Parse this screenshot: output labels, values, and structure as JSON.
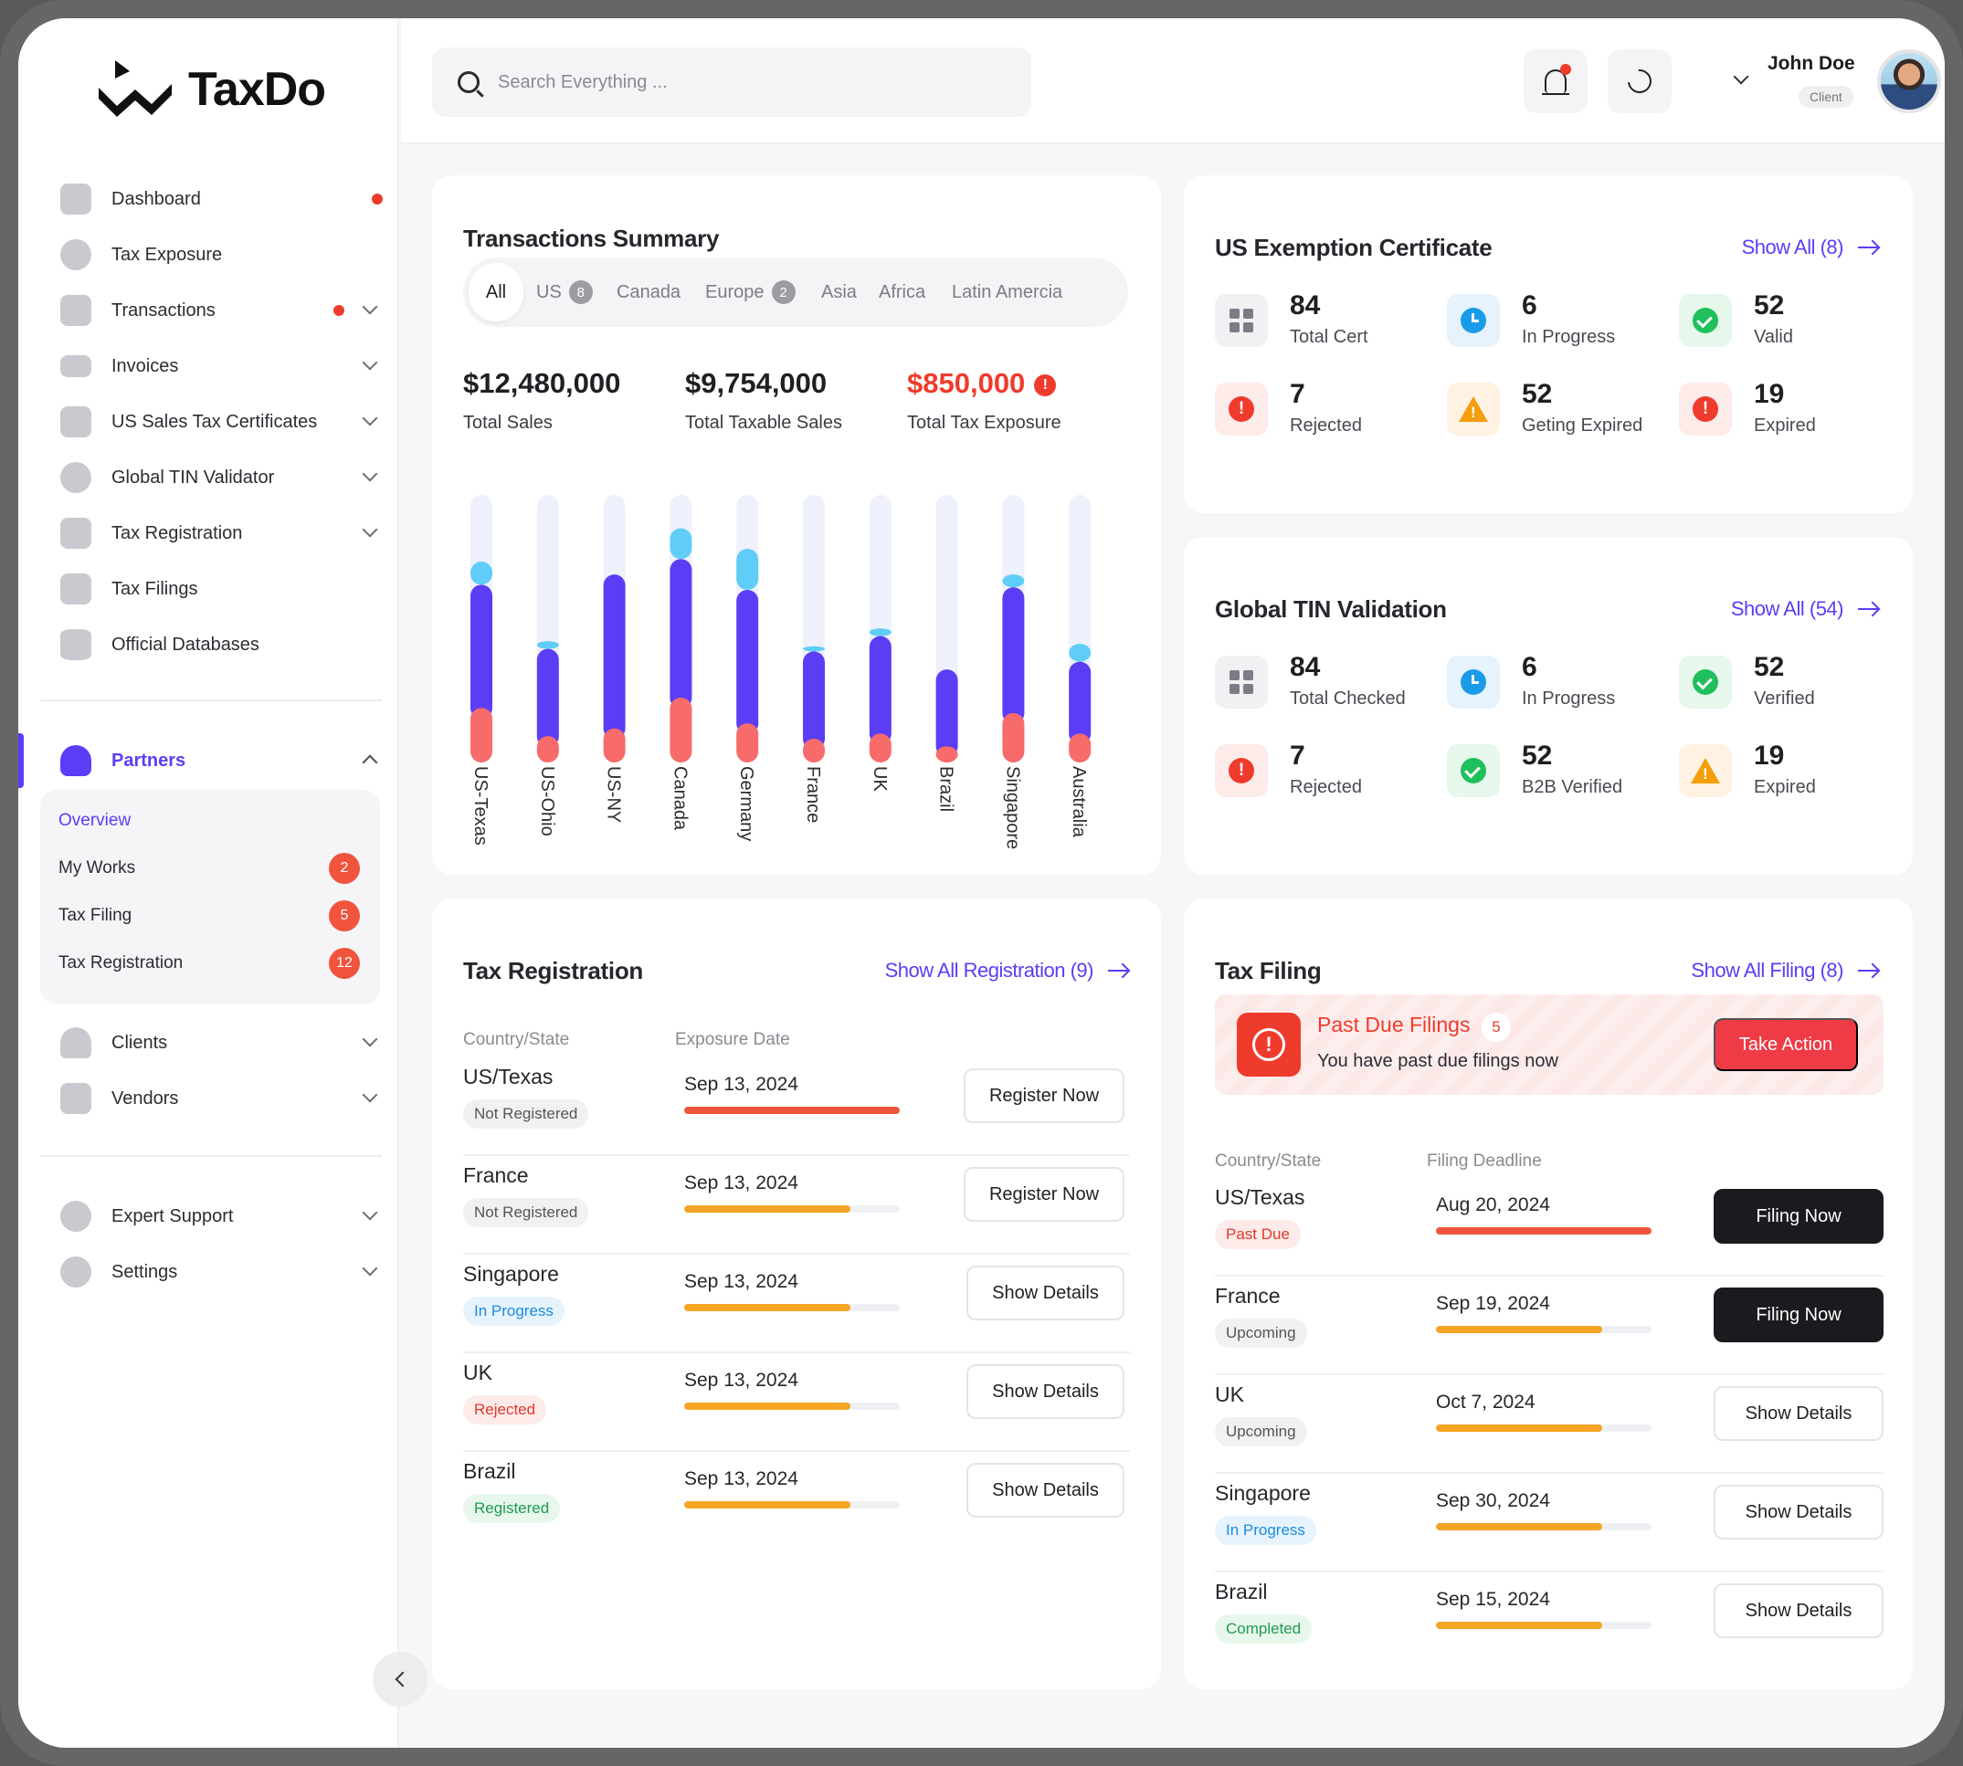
{
  "app": {
    "name": "TaxDo",
    "accent": "#5b3df5"
  },
  "search": {
    "placeholder": "Search Everything ..."
  },
  "user": {
    "name": "John Doe",
    "role": "Client"
  },
  "sidebar": {
    "items": [
      {
        "label": "Dashboard",
        "icon": "chart-icon"
      },
      {
        "label": "Tax Exposure",
        "icon": "eye-icon"
      },
      {
        "label": "Transactions",
        "icon": "receipt-icon"
      },
      {
        "label": "Invoices",
        "icon": "card-icon"
      },
      {
        "label": "US Sales Tax Certificates",
        "icon": "certificate-icon"
      },
      {
        "label": "Global TIN Validator",
        "icon": "badge-check-icon"
      },
      {
        "label": "Tax Registration",
        "icon": "pen-icon"
      },
      {
        "label": "Tax Filings",
        "icon": "filing-icon"
      },
      {
        "label": "Official Databases",
        "icon": "database-icon"
      }
    ],
    "partners": {
      "label": "Partners",
      "sub": [
        {
          "label": "Overview"
        },
        {
          "label": "My Works",
          "badge": "2"
        },
        {
          "label": "Tax Filing",
          "badge": "5"
        },
        {
          "label": "Tax Registration",
          "badge": "12"
        }
      ]
    },
    "more": [
      {
        "label": "Clients",
        "icon": "users-icon"
      },
      {
        "label": "Vendors",
        "icon": "store-icon"
      }
    ],
    "bottom": [
      {
        "label": "Expert Support",
        "icon": "headset-icon"
      },
      {
        "label": "Settings",
        "icon": "gear-icon"
      }
    ]
  },
  "transactions": {
    "title": "Transactions Summary",
    "tabs": [
      {
        "label": "All"
      },
      {
        "label": "US",
        "badge": "8"
      },
      {
        "label": "Canada"
      },
      {
        "label": "Europe",
        "badge": "2"
      },
      {
        "label": "Asia"
      },
      {
        "label": "Africa"
      },
      {
        "label": "Latin Amercia"
      }
    ],
    "stats": [
      {
        "value": "$12,480,000",
        "label": "Total Sales"
      },
      {
        "value": "$9,754,000",
        "label": "Total Taxable Sales"
      },
      {
        "value": "$850,000",
        "label": "Total Tax Exposure"
      }
    ]
  },
  "chart_data": {
    "type": "bar",
    "stacked": true,
    "categories": [
      "US-Texas",
      "US-Ohio",
      "US-NY",
      "Canada",
      "Germany",
      "France",
      "UK",
      "Brazil",
      "Singapore",
      "Australia"
    ],
    "series": [
      {
        "color": "#f76b6b",
        "values": [
          0.17,
          0.06,
          0.09,
          0.21,
          0.11,
          0.05,
          0.07,
          0.02,
          0.15,
          0.07
        ]
      },
      {
        "color": "#5b3df5",
        "values": [
          0.48,
          0.34,
          0.6,
          0.54,
          0.52,
          0.34,
          0.38,
          0.3,
          0.49,
          0.28
        ]
      },
      {
        "color": "#5fcdf7",
        "values": [
          0.09,
          0.03,
          0,
          0.12,
          0.16,
          0.02,
          0.03,
          0,
          0.05,
          0.07
        ]
      }
    ],
    "max": 1,
    "track_color": "#eef1fb"
  },
  "exemption": {
    "title": "US Exemption Certificate",
    "show_all": "Show All (8)",
    "stats": [
      {
        "value": "84",
        "label": "Total Cert",
        "icon": "grid-icon",
        "tone": "grid"
      },
      {
        "value": "6",
        "label": "In Progress",
        "icon": "clock-icon",
        "tone": "blue"
      },
      {
        "value": "52",
        "label": "Valid",
        "icon": "check-circle-icon",
        "tone": "green"
      },
      {
        "value": "7",
        "label": "Rejected",
        "icon": "alert-circle-icon",
        "tone": "red"
      },
      {
        "value": "52",
        "label": "Geting Expired",
        "icon": "warning-icon",
        "tone": "amber"
      },
      {
        "value": "19",
        "label": "Expired",
        "icon": "alert-circle-icon",
        "tone": "red"
      }
    ]
  },
  "tin": {
    "title": "Global TIN Validation",
    "show_all": "Show All (54)",
    "stats": [
      {
        "value": "84",
        "label": "Total Checked",
        "icon": "grid-icon",
        "tone": "grid"
      },
      {
        "value": "6",
        "label": "In Progress",
        "icon": "clock-icon",
        "tone": "blue"
      },
      {
        "value": "52",
        "label": "Verified",
        "icon": "check-circle-icon",
        "tone": "green"
      },
      {
        "value": "7",
        "label": "Rejected",
        "icon": "alert-circle-icon",
        "tone": "red"
      },
      {
        "value": "52",
        "label": "B2B Verified",
        "icon": "check-circle-icon",
        "tone": "green"
      },
      {
        "value": "19",
        "label": "Expired",
        "icon": "warning-icon",
        "tone": "amber"
      }
    ]
  },
  "registration": {
    "title": "Tax Registration",
    "show_all": "Show All Registration (9)",
    "col_country": "Country/State",
    "col_date": "Exposure Date",
    "rows": [
      {
        "country": "US/Texas",
        "status": "Not Registered",
        "tone": "gray",
        "date": "Sep 13, 2024",
        "progress": 1.0,
        "bar": "#f0543c",
        "action": "Register Now"
      },
      {
        "country": "France",
        "status": "Not Registered",
        "tone": "gray",
        "date": "Sep 13, 2024",
        "progress": 0.77,
        "bar": "#f5a524",
        "action": "Register Now"
      },
      {
        "country": "Singapore",
        "status": "In Progress",
        "tone": "blue",
        "date": "Sep 13, 2024",
        "progress": 0.77,
        "bar": "#f5a524",
        "action": "Show Details"
      },
      {
        "country": "UK",
        "status": "Rejected",
        "tone": "red",
        "date": "Sep 13, 2024",
        "progress": 0.77,
        "bar": "#f5a524",
        "action": "Show Details"
      },
      {
        "country": "Brazil",
        "status": "Registered",
        "tone": "green",
        "date": "Sep 13, 2024",
        "progress": 0.77,
        "bar": "#f5a524",
        "action": "Show Details"
      }
    ]
  },
  "filing": {
    "title": "Tax Filing",
    "show_all": "Show All Filing (8)",
    "alert": {
      "title": "Past Due Filings",
      "count": "5",
      "text": "You have past due filings now",
      "action": "Take Action"
    },
    "col_country": "Country/State",
    "col_date": "Filing Deadline",
    "rows": [
      {
        "country": "US/Texas",
        "status": "Past Due",
        "tone": "red",
        "date": "Aug 20, 2024",
        "progress": 1.0,
        "bar": "#f0543c",
        "action": "Filing Now",
        "primary": true
      },
      {
        "country": "France",
        "status": "Upcoming",
        "tone": "gray",
        "date": "Sep 19, 2024",
        "progress": 0.77,
        "bar": "#f5a524",
        "action": "Filing Now",
        "primary": true
      },
      {
        "country": "UK",
        "status": "Upcoming",
        "tone": "gray",
        "date": "Oct 7, 2024",
        "progress": 0.77,
        "bar": "#f5a524",
        "action": "Show Details",
        "primary": false
      },
      {
        "country": "Singapore",
        "status": "In Progress",
        "tone": "blue",
        "date": "Sep 30, 2024",
        "progress": 0.77,
        "bar": "#f5a524",
        "action": "Show Details",
        "primary": false
      },
      {
        "country": "Brazil",
        "status": "Completed",
        "tone": "green",
        "date": "Sep 15, 2024",
        "progress": 0.77,
        "bar": "#f5a524",
        "action": "Show Details",
        "primary": false
      }
    ]
  }
}
